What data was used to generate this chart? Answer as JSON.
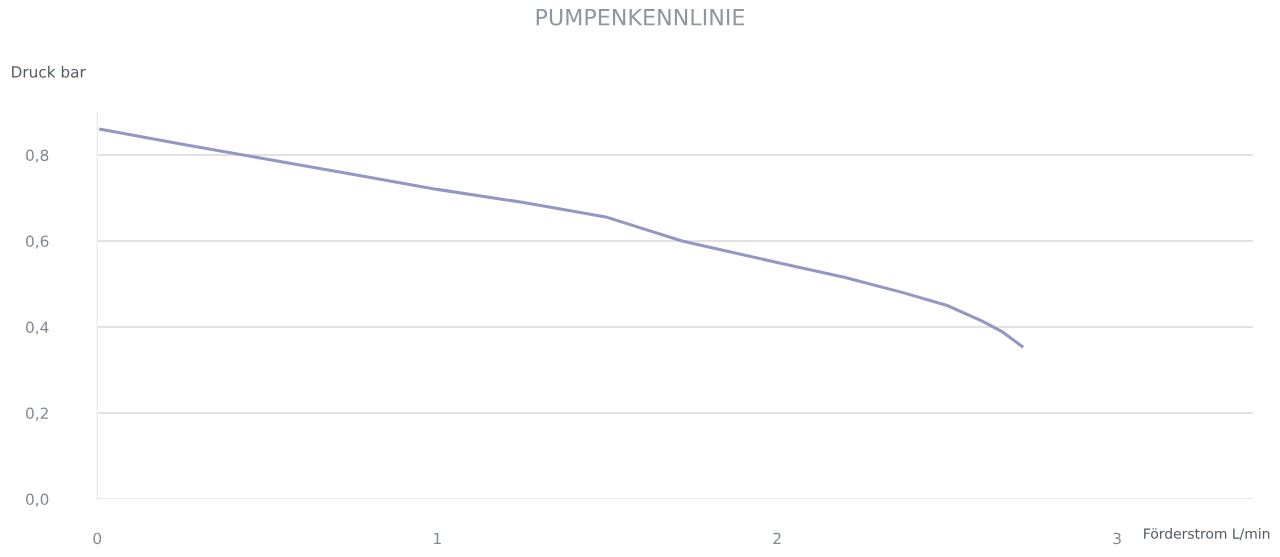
{
  "chart_data": {
    "type": "line",
    "title": "PUMPENKENNLINIE",
    "xlabel": "Förderstrom L/min",
    "ylabel": "Druck bar",
    "x": [
      0.01,
      0.25,
      0.5,
      0.75,
      1.0,
      1.25,
      1.5,
      1.72,
      2.0,
      2.2,
      2.37,
      2.5,
      2.6,
      2.66,
      2.72
    ],
    "series": [
      {
        "color": "#9497c4",
        "values": [
          0.86,
          0.825,
          0.79,
          0.755,
          0.72,
          0.69,
          0.655,
          0.6,
          0.55,
          0.515,
          0.48,
          0.45,
          0.415,
          0.39,
          0.355
        ]
      }
    ],
    "xlim": [
      0,
      3.4
    ],
    "xticks": [
      0,
      1,
      2,
      3
    ],
    "ylim": [
      0,
      0.9
    ],
    "yticks": [
      {
        "value": 0,
        "label": "0,0"
      },
      {
        "value": 0.2,
        "label": "0,2"
      },
      {
        "value": 0.4,
        "label": "0,4"
      },
      {
        "value": 0.6,
        "label": "0,6"
      },
      {
        "value": 0.8,
        "label": "0,8"
      }
    ],
    "grid": "y",
    "marker": "none",
    "line_style": "solid"
  }
}
